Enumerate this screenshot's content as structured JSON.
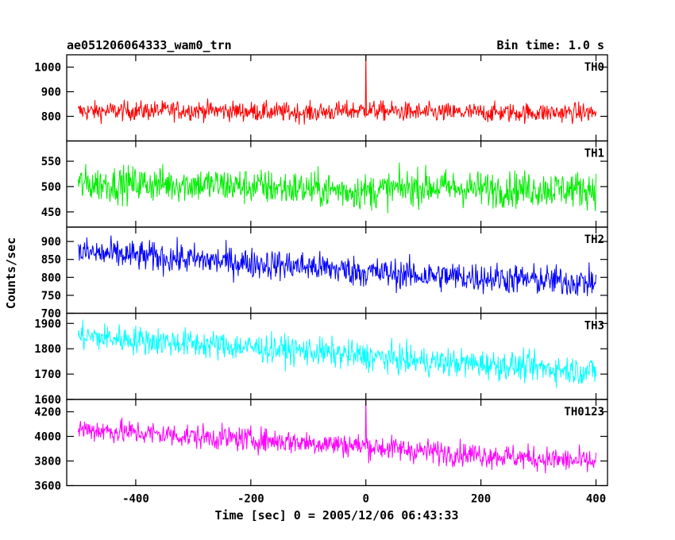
{
  "header": {
    "title_left": "ae051206064333_wam0_trn",
    "title_right": "Bin time: 1.0 s"
  },
  "chart_data": {
    "type": "line",
    "xlabel": "Time [sec] 0 = 2005/12/06 06:43:33",
    "ylabel": "Counts/sec",
    "xlim": [
      -520,
      420
    ],
    "x_ticks": [
      -400,
      -200,
      0,
      200,
      400
    ],
    "x_range": [
      -500,
      400
    ],
    "bin_time_s": 1.0,
    "panels": [
      {
        "name": "TH0",
        "color": "#ff0000",
        "ylim": [
          700,
          1050
        ],
        "y_ticks": [
          800,
          900,
          1000
        ],
        "trend": [
          [
            -500,
            820
          ],
          [
            -300,
            825
          ],
          [
            -100,
            815
          ],
          [
            0,
            825
          ],
          [
            100,
            815
          ],
          [
            200,
            815
          ],
          [
            400,
            815
          ]
        ],
        "noise": 28,
        "spikes": [
          {
            "x": 0,
            "y": 1060
          }
        ]
      },
      {
        "name": "TH1",
        "color": "#00ee00",
        "ylim": [
          420,
          590
        ],
        "y_ticks": [
          450,
          500,
          550
        ],
        "trend": [
          [
            -500,
            505
          ],
          [
            -300,
            505
          ],
          [
            -100,
            495
          ],
          [
            0,
            490
          ],
          [
            100,
            500
          ],
          [
            200,
            495
          ],
          [
            400,
            495
          ]
        ],
        "noise": 25,
        "spikes": []
      },
      {
        "name": "TH2",
        "color": "#0000ff",
        "ylim": [
          700,
          940
        ],
        "y_ticks": [
          700,
          750,
          800,
          850,
          900
        ],
        "trend": [
          [
            -500,
            870
          ],
          [
            -300,
            850
          ],
          [
            -100,
            830
          ],
          [
            0,
            815
          ],
          [
            100,
            805
          ],
          [
            200,
            800
          ],
          [
            400,
            785
          ]
        ],
        "noise": 30,
        "spikes": []
      },
      {
        "name": "TH3",
        "color": "#00ffff",
        "ylim": [
          1600,
          1940
        ],
        "y_ticks": [
          1600,
          1700,
          1800,
          1900
        ],
        "trend": [
          [
            -500,
            1850
          ],
          [
            -300,
            1820
          ],
          [
            -100,
            1790
          ],
          [
            0,
            1770
          ],
          [
            100,
            1750
          ],
          [
            200,
            1740
          ],
          [
            400,
            1710
          ]
        ],
        "noise": 40,
        "spikes": []
      },
      {
        "name": "TH0123",
        "color": "#ff00ff",
        "ylim": [
          3600,
          4300
        ],
        "y_ticks": [
          3600,
          3800,
          4000,
          4200
        ],
        "trend": [
          [
            -500,
            4060
          ],
          [
            -300,
            4000
          ],
          [
            -100,
            3950
          ],
          [
            0,
            3920
          ],
          [
            100,
            3880
          ],
          [
            200,
            3850
          ],
          [
            400,
            3790
          ]
        ],
        "noise": 70,
        "spikes": [
          {
            "x": 0,
            "y": 4300
          }
        ]
      }
    ]
  }
}
